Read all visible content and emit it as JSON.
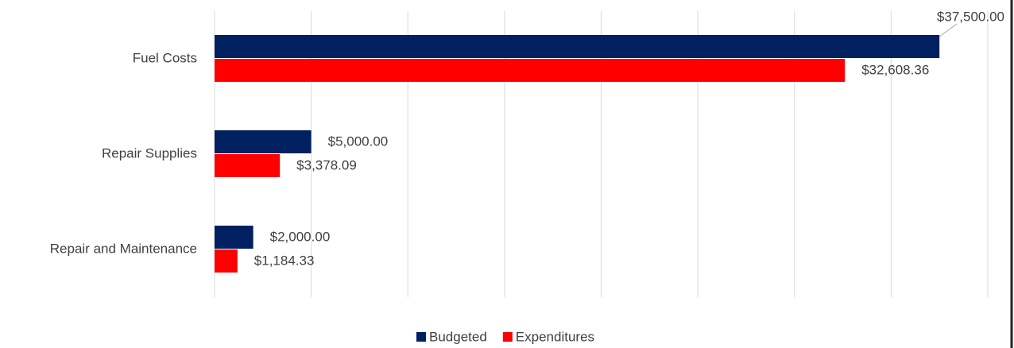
{
  "chart_data": {
    "type": "hbar",
    "categories": [
      "Fuel Costs",
      "Repair Supplies",
      "Repair and Maintenance"
    ],
    "series": [
      {
        "name": "Budgeted",
        "color": "#002060",
        "values": [
          37500,
          5000,
          2000
        ],
        "value_labels": [
          "$37,500.00",
          "$5,000.00",
          "$2,000.00"
        ]
      },
      {
        "name": "Expenditures",
        "color": "#ff0000",
        "values": [
          32608.36,
          3378.09,
          1184.33
        ],
        "value_labels": [
          "$32,608.36",
          "$3,378.09",
          "$1,184.33"
        ]
      }
    ],
    "xlim": [
      0,
      40000
    ],
    "xticks": [
      0,
      5000,
      10000,
      15000,
      20000,
      25000,
      30000,
      35000,
      40000
    ],
    "grid": true,
    "legend": "bottom"
  }
}
